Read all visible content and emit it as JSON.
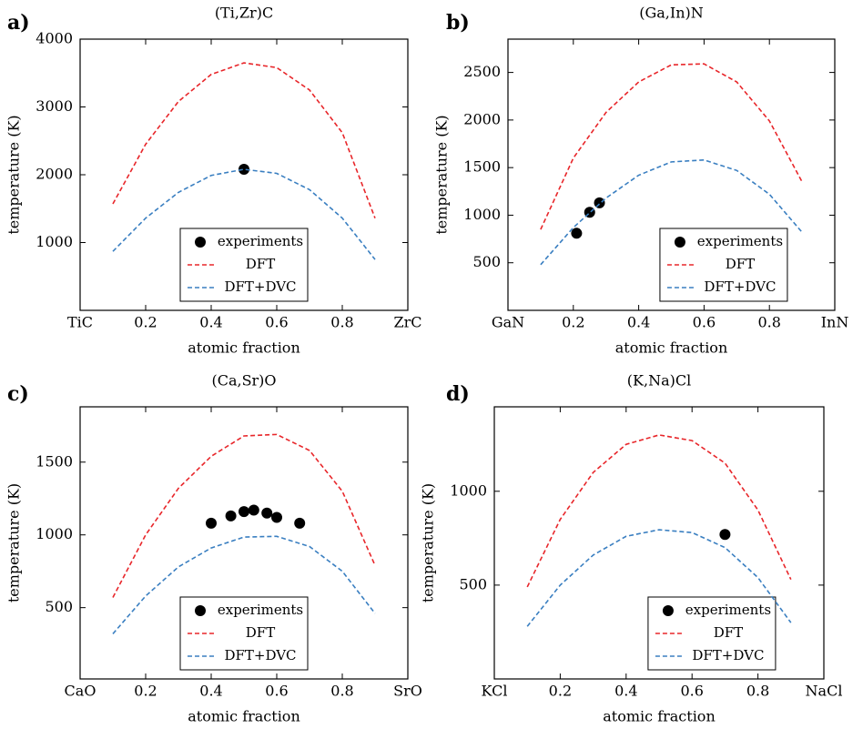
{
  "chart_data": [
    {
      "type": "line",
      "panel_label": "a)",
      "title": "(Ti,Zr)C",
      "xlabel": "atomic fraction",
      "ylabel": "temperature (K)",
      "xlim": [
        0,
        1
      ],
      "ylim": [
        0,
        4000
      ],
      "xticks": [
        {
          "value": 0,
          "label": "TiC"
        },
        0.2,
        0.4,
        0.6,
        0.8,
        {
          "value": 1,
          "label": "ZrC"
        }
      ],
      "yticks": [
        1000,
        2000,
        3000,
        4000
      ],
      "legend": "lower center",
      "series": [
        {
          "name": "experiments",
          "color": "#000000",
          "marker": "circle",
          "x": [
            0.5
          ],
          "values": [
            2080
          ]
        },
        {
          "name": "DFT",
          "color": "#e8262a",
          "linestyle": "dashed",
          "x": [
            0.1,
            0.2,
            0.3,
            0.4,
            0.5,
            0.6,
            0.7,
            0.8,
            0.9
          ],
          "values": [
            1570,
            2450,
            3080,
            3480,
            3650,
            3580,
            3250,
            2620,
            1360
          ]
        },
        {
          "name": "DFT+DVC",
          "color": "#3a7fc1",
          "linestyle": "dashed",
          "x": [
            0.1,
            0.2,
            0.3,
            0.4,
            0.5,
            0.6,
            0.7,
            0.8,
            0.9
          ],
          "values": [
            870,
            1360,
            1740,
            1990,
            2080,
            2020,
            1780,
            1360,
            750
          ]
        }
      ]
    },
    {
      "type": "line",
      "panel_label": "b)",
      "title": "(Ga,In)N",
      "xlabel": "atomic fraction",
      "ylabel": "temperature (K)",
      "xlim": [
        0,
        1
      ],
      "ylim": [
        0,
        2850
      ],
      "xticks": [
        {
          "value": 0,
          "label": "GaN"
        },
        0.2,
        0.4,
        0.6,
        0.8,
        {
          "value": 1,
          "label": "InN"
        }
      ],
      "yticks": [
        500,
        1000,
        1500,
        2000,
        2500
      ],
      "legend": "lower right",
      "series": [
        {
          "name": "experiments",
          "color": "#000000",
          "marker": "circle",
          "x": [
            0.21,
            0.25,
            0.28
          ],
          "values": [
            810,
            1030,
            1130
          ]
        },
        {
          "name": "DFT",
          "color": "#e8262a",
          "linestyle": "dashed",
          "x": [
            0.1,
            0.2,
            0.3,
            0.4,
            0.5,
            0.6,
            0.7,
            0.8,
            0.9
          ],
          "values": [
            850,
            1600,
            2080,
            2400,
            2580,
            2590,
            2400,
            1990,
            1350
          ]
        },
        {
          "name": "DFT+DVC",
          "color": "#3a7fc1",
          "linestyle": "dashed",
          "x": [
            0.1,
            0.2,
            0.3,
            0.4,
            0.5,
            0.6,
            0.7,
            0.8,
            0.9
          ],
          "values": [
            480,
            870,
            1180,
            1420,
            1560,
            1580,
            1470,
            1220,
            820
          ]
        }
      ]
    },
    {
      "type": "line",
      "panel_label": "c)",
      "title": "(Ca,Sr)O",
      "xlabel": "atomic fraction",
      "ylabel": "temperature (K)",
      "xlim": [
        0,
        1
      ],
      "ylim": [
        10,
        1880
      ],
      "xticks": [
        {
          "value": 0,
          "label": "CaO"
        },
        0.2,
        0.4,
        0.6,
        0.8,
        {
          "value": 1,
          "label": "SrO"
        }
      ],
      "yticks": [
        500,
        1000,
        1500
      ],
      "legend": "lower center",
      "series": [
        {
          "name": "experiments",
          "color": "#000000",
          "marker": "circle",
          "x": [
            0.4,
            0.46,
            0.5,
            0.53,
            0.57,
            0.6,
            0.67
          ],
          "values": [
            1080,
            1130,
            1160,
            1170,
            1150,
            1120,
            1080
          ]
        },
        {
          "name": "DFT",
          "color": "#e8262a",
          "linestyle": "dashed",
          "x": [
            0.1,
            0.2,
            0.3,
            0.4,
            0.5,
            0.6,
            0.7,
            0.8,
            0.9
          ],
          "values": [
            570,
            1000,
            1320,
            1540,
            1680,
            1690,
            1580,
            1300,
            790
          ]
        },
        {
          "name": "DFT+DVC",
          "color": "#3a7fc1",
          "linestyle": "dashed",
          "x": [
            0.1,
            0.2,
            0.3,
            0.4,
            0.5,
            0.6,
            0.7,
            0.8,
            0.9
          ],
          "values": [
            320,
            580,
            780,
            910,
            985,
            990,
            920,
            750,
            460
          ]
        }
      ]
    },
    {
      "type": "line",
      "panel_label": "d)",
      "title": "(K,Na)Cl",
      "xlabel": "atomic fraction",
      "ylabel": "temperature (K)",
      "xlim": [
        0,
        1
      ],
      "ylim": [
        0,
        1450
      ],
      "xticks": [
        {
          "value": 0,
          "label": "KCl"
        },
        0.2,
        0.4,
        0.6,
        0.8,
        {
          "value": 1,
          "label": "NaCl"
        }
      ],
      "yticks": [
        500,
        1000
      ],
      "legend": "lower right",
      "series": [
        {
          "name": "experiments",
          "color": "#000000",
          "marker": "circle",
          "x": [
            0.7
          ],
          "values": [
            770
          ]
        },
        {
          "name": "DFT",
          "color": "#e8262a",
          "linestyle": "dashed",
          "x": [
            0.1,
            0.2,
            0.3,
            0.4,
            0.5,
            0.6,
            0.7,
            0.8,
            0.9
          ],
          "values": [
            490,
            850,
            1100,
            1250,
            1300,
            1270,
            1150,
            900,
            530
          ]
        },
        {
          "name": "DFT+DVC",
          "color": "#3a7fc1",
          "linestyle": "dashed",
          "x": [
            0.1,
            0.2,
            0.3,
            0.4,
            0.5,
            0.6,
            0.7,
            0.8,
            0.9
          ],
          "values": [
            280,
            500,
            660,
            760,
            795,
            780,
            700,
            540,
            300
          ]
        }
      ]
    }
  ]
}
